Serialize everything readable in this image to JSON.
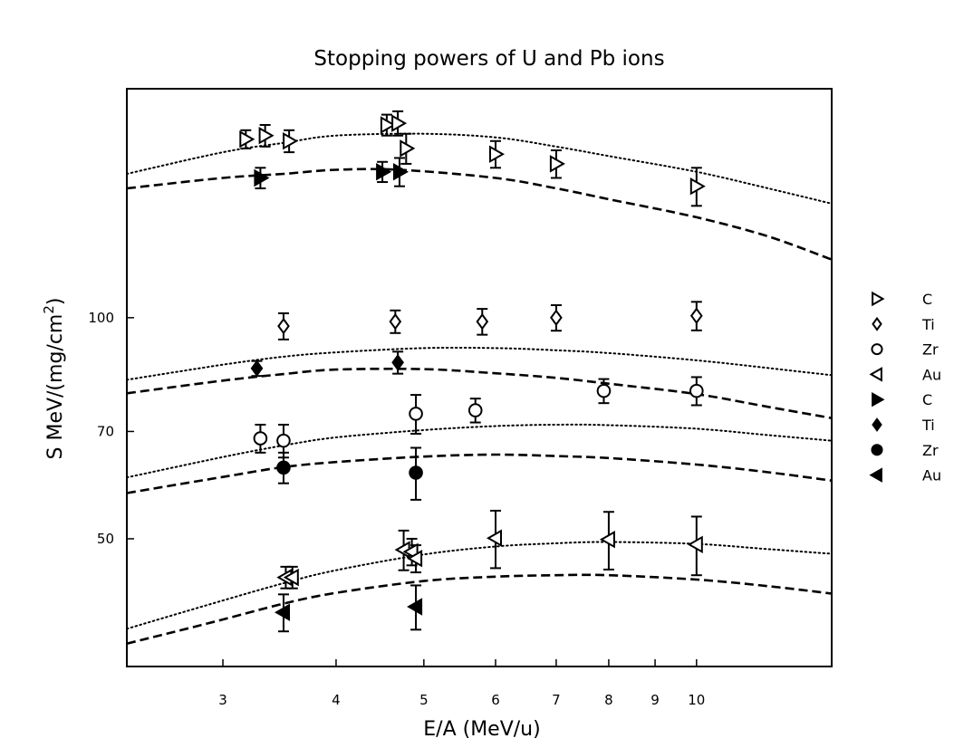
{
  "chart_data": {
    "type": "scatter",
    "title": "Stopping powers of U and Pb ions",
    "xlabel": "E/A (MeV/u)",
    "ylabel_prefix": "S MeV/(mg/cm",
    "ylabel_sup": "2",
    "ylabel_suffix": ")",
    "x_scale": "log",
    "y_scale": "log",
    "xlim": [
      2.35,
      14.1
    ],
    "ylim": [
      33.5,
      205
    ],
    "x_ticks": [
      {
        "value": 3,
        "label": "3"
      },
      {
        "value": 4,
        "label": "4"
      },
      {
        "value": 5,
        "label": "5"
      },
      {
        "value": 6,
        "label": "6"
      },
      {
        "value": 7,
        "label": "7"
      },
      {
        "value": 8,
        "label": "8"
      },
      {
        "value": 9,
        "label": "9"
      },
      {
        "value": 10,
        "label": "10"
      }
    ],
    "y_ticks": [
      {
        "value": 50,
        "label": "50"
      },
      {
        "value": 70,
        "label": "70"
      },
      {
        "value": 100,
        "label": "100"
      }
    ],
    "grid": false,
    "legend_position": "right",
    "series": [
      {
        "name": "C",
        "marker": "triangle-right",
        "filled": false,
        "x": [
          3.18,
          3.34,
          3.55,
          4.55,
          4.68,
          4.78,
          6.0,
          7.0,
          10.0
        ],
        "y": [
          175,
          177,
          174,
          183,
          184,
          170,
          167,
          162,
          151
        ],
        "err": [
          5,
          6,
          6,
          6,
          7,
          8,
          7,
          7,
          9
        ]
      },
      {
        "name": "Ti",
        "marker": "diamond",
        "filled": false,
        "x": [
          3.5,
          4.65,
          5.8,
          7.0,
          10.0
        ],
        "y": [
          97.4,
          98.8,
          98.8,
          100.0,
          100.6
        ],
        "err": [
          4,
          3.5,
          4,
          4,
          4.5
        ]
      },
      {
        "name": "Zr",
        "marker": "circle",
        "filled": false,
        "x": [
          3.3,
          3.5,
          4.9,
          5.7,
          7.9,
          10.0
        ],
        "y": [
          68.5,
          68.0,
          74.0,
          74.8,
          79.5,
          79.5
        ],
        "err": [
          3,
          3.5,
          4.5,
          2.8,
          3,
          3.5
        ]
      },
      {
        "name": "Au",
        "marker": "triangle-left",
        "filled": false,
        "x": [
          3.52,
          3.58,
          4.75,
          4.85,
          4.9,
          6.0,
          8.0,
          10.0
        ],
        "y": [
          44.3,
          44.3,
          48.3,
          48.0,
          47.0,
          50.1,
          49.9,
          49.1
        ],
        "err": [
          1.5,
          1.5,
          3,
          2,
          2,
          4.5,
          4.5,
          4.5
        ]
      },
      {
        "name": "C",
        "marker": "triangle-right",
        "filled": true,
        "x": [
          3.3,
          4.5,
          4.7
        ],
        "y": [
          155,
          158,
          158
        ],
        "err": [
          5,
          5,
          7
        ]
      },
      {
        "name": "Ti",
        "marker": "diamond",
        "filled": true,
        "x": [
          3.27,
          4.68
        ],
        "y": [
          85.3,
          86.9
        ],
        "err": [
          2,
          3
        ]
      },
      {
        "name": "Zr",
        "marker": "circle",
        "filled": true,
        "x": [
          3.5,
          4.9
        ],
        "y": [
          62.5,
          61.5
        ],
        "err": [
          3,
          5
        ]
      },
      {
        "name": "Au",
        "marker": "triangle-left",
        "filled": true,
        "x": [
          3.5,
          4.9
        ],
        "y": [
          39.7,
          40.4
        ],
        "err": [
          2.3,
          2.8
        ]
      }
    ],
    "curves": [
      {
        "style": "dotted",
        "x": [
          2.35,
          3.0,
          3.5,
          4.0,
          5.0,
          6.0,
          7.0,
          8.0,
          10.0,
          12.0,
          14.1
        ],
        "y": [
          157,
          168,
          173,
          177,
          178,
          176,
          171,
          166,
          158,
          150,
          143
        ]
      },
      {
        "style": "dashed",
        "x": [
          2.35,
          3.0,
          3.5,
          4.0,
          4.7,
          6.0,
          7.0,
          8.0,
          10.0,
          12.0,
          14.1
        ],
        "y": [
          150,
          155,
          157,
          159,
          159,
          155,
          150,
          145,
          137,
          129,
          120
        ]
      },
      {
        "style": "dotted",
        "x": [
          2.35,
          3.0,
          3.5,
          4.0,
          5.0,
          6.0,
          7.0,
          8.0,
          10.0,
          12.0,
          14.1
        ],
        "y": [
          82.3,
          86.3,
          88.5,
          89.7,
          90.9,
          90.9,
          90.3,
          89.5,
          87.5,
          85.4,
          83.5
        ]
      },
      {
        "style": "dashed",
        "x": [
          2.35,
          3.0,
          3.5,
          4.0,
          5.0,
          6.0,
          7.0,
          8.0,
          10.0,
          12.0,
          14.1
        ],
        "y": [
          78.9,
          82.1,
          83.8,
          85.0,
          85.1,
          84.0,
          82.8,
          81.3,
          78.7,
          75.6,
          73.0
        ]
      },
      {
        "style": "dotted",
        "x": [
          2.35,
          3.0,
          3.5,
          4.0,
          5.0,
          6.0,
          7.0,
          8.0,
          10.0,
          12.0,
          14.1
        ],
        "y": [
          60.6,
          64.6,
          67.0,
          68.7,
          70.3,
          71.2,
          71.5,
          71.4,
          70.6,
          69.2,
          68.0
        ]
      },
      {
        "style": "dashed",
        "x": [
          2.35,
          3.0,
          3.5,
          4.0,
          5.0,
          6.0,
          7.0,
          8.0,
          10.0,
          12.0,
          14.1
        ],
        "y": [
          57.7,
          60.7,
          62.6,
          63.6,
          64.7,
          65.1,
          64.8,
          64.4,
          63.1,
          61.6,
          60.0
        ]
      },
      {
        "style": "dotted",
        "x": [
          2.35,
          2.9,
          3.5,
          4.0,
          5.0,
          6.0,
          7.0,
          8.0,
          10.0,
          12.0,
          14.1
        ],
        "y": [
          37.7,
          40.7,
          43.5,
          45.3,
          47.6,
          48.8,
          49.3,
          49.5,
          49.2,
          48.4,
          47.7
        ]
      },
      {
        "style": "dashed",
        "x": [
          2.35,
          2.9,
          3.5,
          4.0,
          5.0,
          6.0,
          7.0,
          8.0,
          10.0,
          12.0,
          14.1
        ],
        "y": [
          36.0,
          38.4,
          40.8,
          42.2,
          43.8,
          44.4,
          44.6,
          44.6,
          44.0,
          43.1,
          42.1
        ]
      }
    ]
  }
}
